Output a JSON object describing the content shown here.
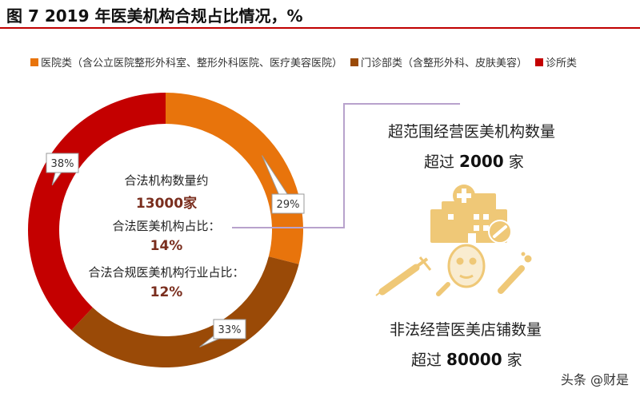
{
  "figure_title": "图 7 2019 年医美机构合规占比情况，%",
  "chart_data": {
    "type": "pie",
    "variant": "donut",
    "categories": [
      "医院类（含公立医院整形外科室、整形外科医院、医疗美容医院）",
      "门诊部类（含整形外科、皮肤美容）",
      "诊所类"
    ],
    "values": [
      29,
      33,
      38
    ],
    "data_labels": [
      "29%",
      "33%",
      "38%"
    ],
    "colors": [
      "#e8740c",
      "#9a4a07",
      "#c40000"
    ],
    "legend_position": "top"
  },
  "center": {
    "label1": "合法机构数量约",
    "value1": "13000家",
    "label2": "合法医美机构占比：",
    "value2": "14%",
    "label3": "合法合规医美机构行业占比：",
    "value3": "12%"
  },
  "callout": {
    "line1": "超范围经营医美机构数量",
    "line2_prefix": "超过 ",
    "line2_value": "2000",
    "line2_suffix": " 家",
    "line3": "非法经营医美店铺数量",
    "line4_prefix": "超过 ",
    "line4_value": "80000",
    "line4_suffix": " 家"
  },
  "icons": [
    "hospital-icon",
    "syringe-icon",
    "face-mask-icon",
    "syringe-icon",
    "pill-icon"
  ],
  "watermark": "头条 @财是"
}
